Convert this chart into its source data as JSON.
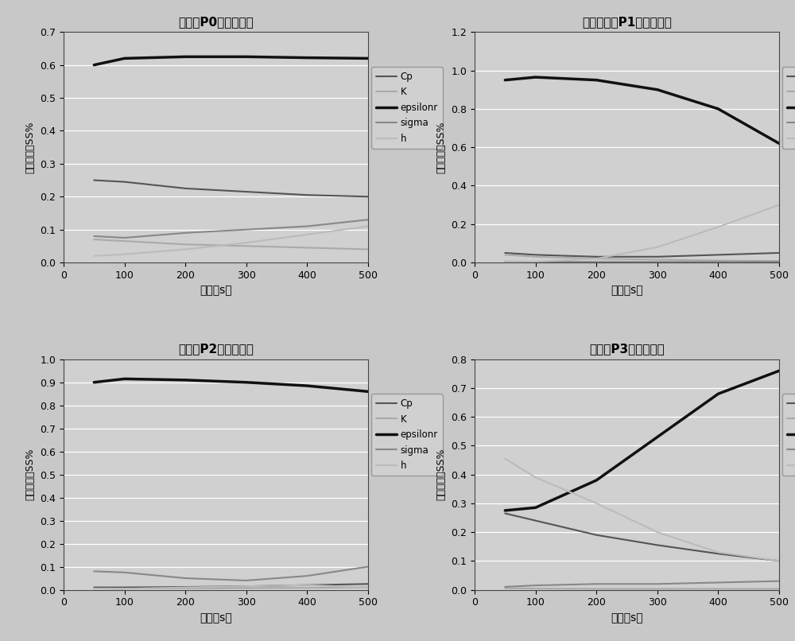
{
  "bg_color": "#d0d0d0",
  "plot_bg_color": "#d0d0d0",
  "outer_bg": "#c8c8c8",
  "x_ticks": [
    0,
    100,
    200,
    300,
    400,
    500
  ],
  "x_data": [
    50,
    100,
    200,
    300,
    400,
    500
  ],
  "xlabel": "时间（s）",
  "ylabel": "方差贡献率SS%",
  "legend_labels": [
    "Cp",
    "K",
    "epsilonr",
    "sigma",
    "h"
  ],
  "line_colors": [
    "#555555",
    "#aaaaaa",
    "#111111",
    "#888888",
    "#bbbbbb"
  ],
  "line_widths": [
    1.5,
    1.5,
    2.5,
    1.5,
    1.5
  ],
  "plots": [
    {
      "title": "中心点P0方差贡献率",
      "ylim": [
        0,
        0.7
      ],
      "yticks": [
        0,
        0.1,
        0.2,
        0.3,
        0.4,
        0.5,
        0.6,
        0.7
      ],
      "series": {
        "Cp": [
          0.25,
          0.245,
          0.225,
          0.215,
          0.205,
          0.2
        ],
        "K": [
          0.07,
          0.065,
          0.055,
          0.05,
          0.045,
          0.04
        ],
        "epsilonr": [
          0.6,
          0.62,
          0.625,
          0.625,
          0.622,
          0.62
        ],
        "sigma": [
          0.08,
          0.075,
          0.09,
          0.1,
          0.11,
          0.13
        ],
        "h": [
          0.02,
          0.025,
          0.04,
          0.06,
          0.085,
          0.11
        ]
      }
    },
    {
      "title": "近场水冷点P1方差贡献率",
      "ylim": [
        0,
        1.2
      ],
      "yticks": [
        0,
        0.2,
        0.4,
        0.6,
        0.8,
        1.0,
        1.2
      ],
      "series": {
        "Cp": [
          0.05,
          0.04,
          0.03,
          0.03,
          0.04,
          0.05
        ],
        "K": [
          0.04,
          0.03,
          0.02,
          0.015,
          0.01,
          0.008
        ],
        "epsilonr": [
          0.95,
          0.965,
          0.95,
          0.9,
          0.8,
          0.62
        ],
        "sigma": [
          0.005,
          0.004,
          0.003,
          0.003,
          0.003,
          0.003
        ],
        "h": [
          0.005,
          0.005,
          0.02,
          0.08,
          0.185,
          0.3
        ]
      }
    },
    {
      "title": "近场点P2方差贡献率",
      "ylim": [
        0,
        1.0
      ],
      "yticks": [
        0,
        0.1,
        0.2,
        0.3,
        0.4,
        0.5,
        0.6,
        0.7,
        0.8,
        0.9,
        1.0
      ],
      "series": {
        "Cp": [
          0.01,
          0.01,
          0.012,
          0.015,
          0.02,
          0.025
        ],
        "K": [
          0.005,
          0.005,
          0.006,
          0.007,
          0.008,
          0.01
        ],
        "epsilonr": [
          0.9,
          0.915,
          0.91,
          0.9,
          0.885,
          0.86
        ],
        "sigma": [
          0.08,
          0.075,
          0.05,
          0.04,
          0.06,
          0.1
        ],
        "h": [
          0.005,
          0.004,
          0.01,
          0.015,
          0.02,
          0.01
        ]
      }
    },
    {
      "title": "远场点P3方差贡献率",
      "ylim": [
        0,
        0.8
      ],
      "yticks": [
        0,
        0.1,
        0.2,
        0.3,
        0.4,
        0.5,
        0.6,
        0.7,
        0.8
      ],
      "series": {
        "Cp": [
          0.265,
          0.24,
          0.19,
          0.155,
          0.125,
          0.1
        ],
        "K": [
          0.005,
          0.004,
          0.003,
          0.003,
          0.003,
          0.003
        ],
        "epsilonr": [
          0.275,
          0.285,
          0.38,
          0.53,
          0.68,
          0.76
        ],
        "sigma": [
          0.01,
          0.015,
          0.02,
          0.02,
          0.025,
          0.03
        ],
        "h": [
          0.455,
          0.39,
          0.3,
          0.2,
          0.13,
          0.1
        ]
      }
    }
  ]
}
